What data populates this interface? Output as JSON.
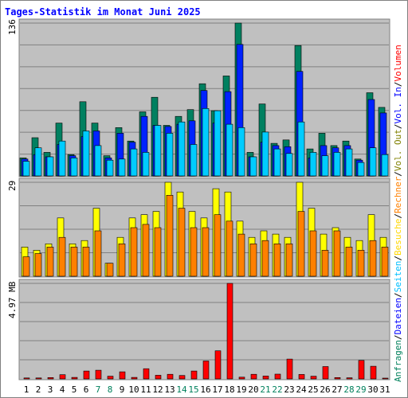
{
  "chart_data": [
    {
      "type": "bar",
      "title": "Tages-Statistik im Monat Juni 2025",
      "panel": "top",
      "max_label": "136",
      "ylim": [
        0,
        136
      ],
      "categories": [
        "1",
        "2",
        "3",
        "4",
        "5",
        "6",
        "7",
        "8",
        "9",
        "10",
        "11",
        "12",
        "13",
        "14",
        "15",
        "16",
        "17",
        "18",
        "19",
        "20",
        "21",
        "22",
        "23",
        "24",
        "25",
        "26",
        "27",
        "28",
        "29",
        "30",
        "31"
      ],
      "series": [
        {
          "name": "Anfragen",
          "color": "#008060",
          "values": [
            16,
            34,
            21,
            47,
            19,
            66,
            47,
            18,
            43,
            31,
            57,
            70,
            45,
            53,
            59,
            82,
            58,
            89,
            136,
            21,
            64,
            29,
            32,
            116,
            24,
            38,
            27,
            31,
            15,
            74,
            61
          ]
        },
        {
          "name": "Dateien",
          "color": "#0022ff",
          "values": [
            15,
            19,
            17,
            28,
            18,
            35,
            40,
            16,
            38,
            30,
            53,
            45,
            44,
            46,
            49,
            76,
            47,
            75,
            117,
            17,
            30,
            27,
            26,
            93,
            16,
            27,
            25,
            27,
            14,
            68,
            56
          ]
        },
        {
          "name": "Seiten",
          "color": "#00ccff",
          "values": [
            13,
            25,
            17,
            31,
            16,
            40,
            27,
            14,
            15,
            24,
            21,
            45,
            38,
            48,
            28,
            60,
            58,
            46,
            43,
            17,
            39,
            24,
            20,
            48,
            21,
            18,
            21,
            24,
            12,
            25,
            19
          ]
        }
      ]
    },
    {
      "type": "bar",
      "panel": "middle",
      "max_label": "29",
      "ylim": [
        0,
        29
      ],
      "categories": [
        "1",
        "2",
        "3",
        "4",
        "5",
        "6",
        "7",
        "8",
        "9",
        "10",
        "11",
        "12",
        "13",
        "14",
        "15",
        "16",
        "17",
        "18",
        "19",
        "20",
        "21",
        "22",
        "23",
        "24",
        "25",
        "26",
        "27",
        "28",
        "29",
        "30",
        "31"
      ],
      "series": [
        {
          "name": "Besuche",
          "color": "#ffff00",
          "values": [
            9,
            8,
            10,
            18,
            10,
            11,
            21,
            4,
            12,
            18,
            19,
            20,
            29,
            26,
            20,
            18,
            27,
            26,
            17,
            12,
            14,
            13,
            12,
            29,
            21,
            13,
            15,
            12,
            11,
            19,
            12
          ]
        },
        {
          "name": "Rechner",
          "color": "#ff8000",
          "values": [
            6,
            7,
            9,
            12,
            9,
            9,
            14,
            4,
            10,
            15,
            16,
            15,
            25,
            21,
            15,
            15,
            19,
            17,
            13,
            10,
            11,
            10,
            10,
            20,
            14,
            8,
            14,
            9,
            8,
            11,
            9
          ]
        }
      ]
    },
    {
      "type": "bar",
      "panel": "bottom",
      "max_label": "4.97 MB",
      "ylim": [
        0,
        4.97
      ],
      "categories": [
        "1",
        "2",
        "3",
        "4",
        "5",
        "6",
        "7",
        "8",
        "9",
        "10",
        "11",
        "12",
        "13",
        "14",
        "15",
        "16",
        "17",
        "18",
        "19",
        "20",
        "21",
        "22",
        "23",
        "24",
        "25",
        "26",
        "27",
        "28",
        "29",
        "30",
        "31"
      ],
      "series": [
        {
          "name": "Volumen",
          "color": "#ff0000",
          "values": [
            0.05,
            0.05,
            0.07,
            0.22,
            0.08,
            0.41,
            0.45,
            0.14,
            0.37,
            0.08,
            0.53,
            0.19,
            0.24,
            0.18,
            0.41,
            0.93,
            1.46,
            4.97,
            0.09,
            0.24,
            0.15,
            0.25,
            1.03,
            0.23,
            0.14,
            0.64,
            0.07,
            0.06,
            0.96,
            0.66,
            0.0
          ]
        }
      ]
    }
  ],
  "x_label_colors": {
    "weekday": "#000000",
    "weekend": "#00805c"
  },
  "weekend_days": [
    "7",
    "8",
    "14",
    "15",
    "21",
    "22",
    "28",
    "29"
  ],
  "right_labels": [
    {
      "text": "Anfragen",
      "color": "#00805c"
    },
    {
      "text": "Dateien",
      "color": "#0000ff"
    },
    {
      "text": "Seiten",
      "color": "#00bfff"
    },
    {
      "text": "Besuche",
      "color": "#ffd700"
    },
    {
      "text": "Rechner",
      "color": "#ff8000"
    },
    {
      "text": "Vol. Out",
      "color": "#808000"
    },
    {
      "text": "Vol. In",
      "color": "#0000ff"
    },
    {
      "text": "Volumen",
      "color": "#ff0000"
    }
  ],
  "right_separator": "/",
  "colors": {
    "title": "#0000ff",
    "panel_bg": "#c0c0c0",
    "grid": "#808080"
  }
}
